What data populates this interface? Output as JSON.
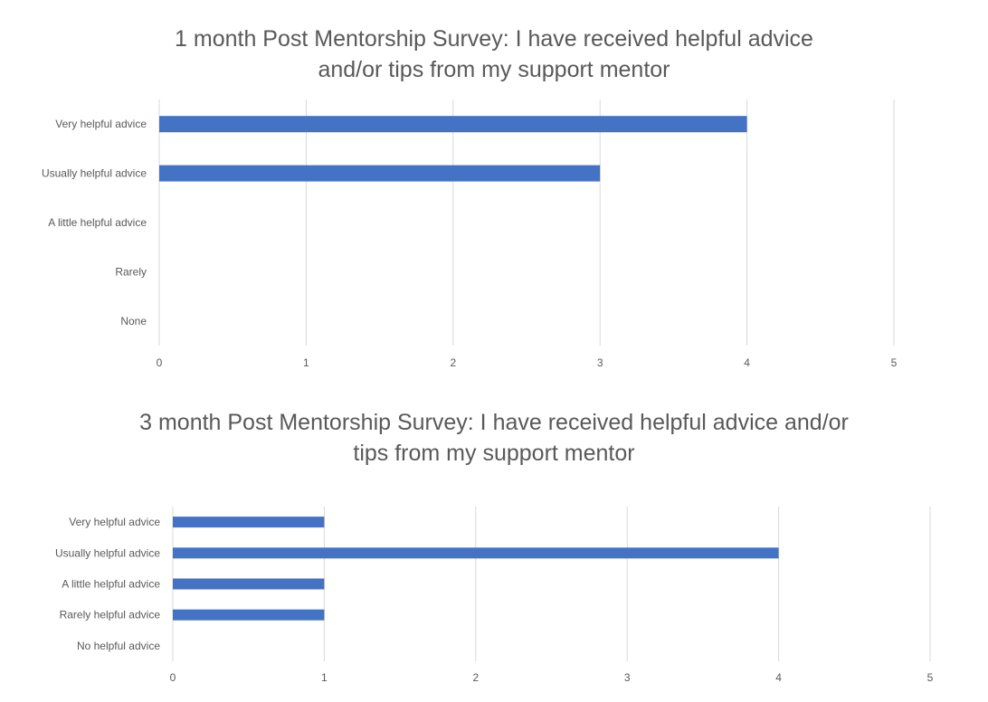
{
  "chart_data": [
    {
      "type": "bar",
      "orientation": "horizontal",
      "title_lines": [
        "1 month Post Mentorship Survey: I have received helpful advice",
        "and/or tips from my support mentor"
      ],
      "categories": [
        "Very helpful advice",
        "Usually helpful advice",
        "A little helpful advice",
        "Rarely",
        "None"
      ],
      "values": [
        4,
        3,
        0,
        0,
        0
      ],
      "xlim": [
        0,
        5
      ],
      "x_ticks": [
        "0",
        "1",
        "2",
        "3",
        "4",
        "5"
      ],
      "grid": true,
      "legend": false,
      "bar_color": "#4472c4"
    },
    {
      "type": "bar",
      "orientation": "horizontal",
      "title_lines": [
        "3 month Post Mentorship Survey: I have received helpful advice and/or",
        "tips from my support mentor"
      ],
      "categories": [
        "Very helpful advice",
        "Usually helpful advice",
        "A little helpful advice",
        "Rarely helpful advice",
        "No helpful advice"
      ],
      "values": [
        1,
        4,
        1,
        1,
        0
      ],
      "xlim": [
        0,
        5
      ],
      "x_ticks": [
        "0",
        "1",
        "2",
        "3",
        "4",
        "5"
      ],
      "grid": true,
      "legend": false,
      "bar_color": "#4472c4"
    }
  ]
}
